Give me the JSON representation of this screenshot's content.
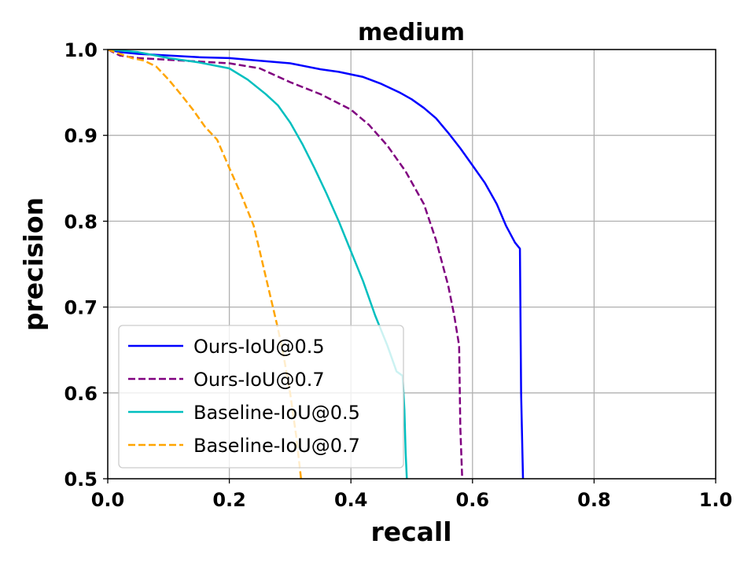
{
  "chart_data": {
    "type": "line",
    "title": "medium",
    "xlabel": "recall",
    "ylabel": "precision",
    "xlim": [
      0.0,
      1.0
    ],
    "ylim": [
      0.5,
      1.0
    ],
    "xticks": [
      "0.0",
      "0.2",
      "0.4",
      "0.6",
      "0.8",
      "1.0"
    ],
    "yticks": [
      "0.5",
      "0.6",
      "0.7",
      "0.8",
      "0.9",
      "1.0"
    ],
    "grid": true,
    "legend_position": "lower-left",
    "series": [
      {
        "name": "Ours-IoU@0.5",
        "color": "#0000ff",
        "dash": "solid",
        "x": [
          0.0,
          0.02,
          0.05,
          0.1,
          0.15,
          0.2,
          0.25,
          0.3,
          0.35,
          0.38,
          0.42,
          0.45,
          0.48,
          0.5,
          0.52,
          0.54,
          0.56,
          0.58,
          0.6,
          0.62,
          0.64,
          0.655,
          0.67,
          0.678,
          0.68,
          0.683
        ],
        "y": [
          1.0,
          0.997,
          0.995,
          0.993,
          0.991,
          0.99,
          0.987,
          0.984,
          0.977,
          0.974,
          0.968,
          0.96,
          0.95,
          0.942,
          0.932,
          0.92,
          0.903,
          0.885,
          0.865,
          0.845,
          0.82,
          0.795,
          0.775,
          0.768,
          0.6,
          0.5
        ]
      },
      {
        "name": "Ours-IoU@0.7",
        "color": "#800080",
        "dash": "dashed",
        "x": [
          0.0,
          0.02,
          0.05,
          0.1,
          0.15,
          0.2,
          0.25,
          0.3,
          0.35,
          0.4,
          0.43,
          0.46,
          0.49,
          0.52,
          0.54,
          0.56,
          0.57,
          0.578,
          0.58,
          0.583
        ],
        "y": [
          1.0,
          0.993,
          0.99,
          0.988,
          0.986,
          0.984,
          0.978,
          0.962,
          0.948,
          0.93,
          0.912,
          0.888,
          0.858,
          0.82,
          0.778,
          0.725,
          0.69,
          0.655,
          0.56,
          0.5
        ]
      },
      {
        "name": "Baseline-IoU@0.5",
        "color": "#00bfbf",
        "dash": "solid",
        "x": [
          0.0,
          0.02,
          0.05,
          0.1,
          0.15,
          0.2,
          0.23,
          0.26,
          0.28,
          0.3,
          0.32,
          0.34,
          0.36,
          0.38,
          0.4,
          0.42,
          0.44,
          0.46,
          0.475,
          0.485,
          0.488,
          0.49,
          0.492
        ],
        "y": [
          1.0,
          0.999,
          0.997,
          0.99,
          0.985,
          0.978,
          0.965,
          0.948,
          0.935,
          0.915,
          0.89,
          0.862,
          0.832,
          0.8,
          0.765,
          0.73,
          0.69,
          0.655,
          0.625,
          0.62,
          0.58,
          0.53,
          0.5
        ]
      },
      {
        "name": "Baseline-IoU@0.7",
        "color": "#ffa500",
        "dash": "dashed",
        "x": [
          0.0,
          0.02,
          0.04,
          0.06,
          0.08,
          0.1,
          0.12,
          0.14,
          0.16,
          0.18,
          0.2,
          0.22,
          0.24,
          0.25,
          0.26,
          0.27,
          0.28,
          0.29,
          0.3,
          0.31,
          0.318
        ],
        "y": [
          1.0,
          0.995,
          0.99,
          0.987,
          0.98,
          0.965,
          0.948,
          0.93,
          0.91,
          0.895,
          0.862,
          0.83,
          0.795,
          0.765,
          0.735,
          0.705,
          0.675,
          0.64,
          0.6,
          0.55,
          0.5
        ]
      }
    ]
  }
}
